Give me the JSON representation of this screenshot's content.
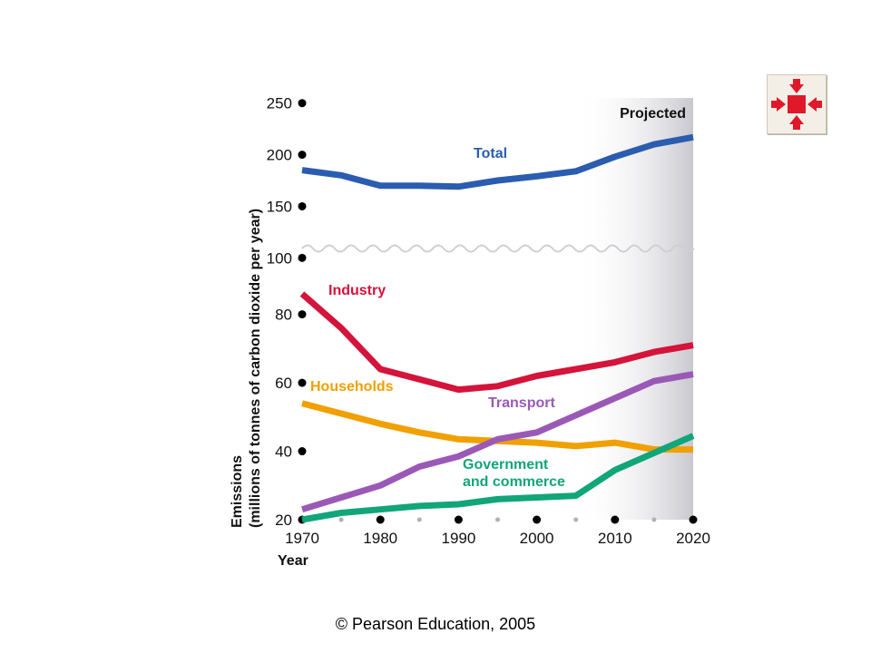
{
  "copyright": "© Pearson Education, 2005",
  "colors": {
    "total": "#2a5db0",
    "industry": "#d4143a",
    "households": "#f0a000",
    "transport": "#9b59b6",
    "government": "#12a57a",
    "projected_shade": "#c9c8ce",
    "nav_icon": "#e0192a"
  },
  "nav_button": {
    "icon": "collapse-arrows-icon"
  },
  "chart_data": {
    "type": "line",
    "xlabel": "Year",
    "ylabel_line1": "Emissions",
    "ylabel_line2": "(millions of tonnes of carbon dioxide per year)",
    "projected_label": "Projected",
    "projected_range": [
      2005,
      2020
    ],
    "axis_break": "between 90 and 95 (wavy break)",
    "x_ticks": [
      1970,
      1980,
      1990,
      2000,
      2010,
      2020
    ],
    "x_tick_labels": [
      "1970",
      "1980",
      "1990",
      "2000",
      "2010",
      "2020"
    ],
    "x_minor_ticks": [
      1975,
      1985,
      1995,
      2005,
      2015
    ],
    "y_ticks_lower": [
      20,
      40,
      60,
      80
    ],
    "y_tick_labels_lower": [
      "20",
      "40",
      "60",
      "80"
    ],
    "y_ticks_upper": [
      100,
      150,
      200,
      250
    ],
    "y_tick_labels_upper": [
      "100",
      "150",
      "200",
      "250"
    ],
    "ylim_lower": [
      20,
      95
    ],
    "ylim_upper": [
      95,
      255
    ],
    "x": [
      1970,
      1975,
      1980,
      1985,
      1990,
      1995,
      2000,
      2005,
      2010,
      2015,
      2020
    ],
    "series": [
      {
        "name": "Total",
        "color_key": "total",
        "values": [
          185,
          180,
          170,
          170,
          169,
          175,
          179,
          184,
          198,
          210,
          217
        ]
      },
      {
        "name": "Industry",
        "color_key": "industry",
        "values": [
          86,
          76,
          64,
          61,
          58,
          59,
          62,
          64,
          66,
          69,
          71
        ]
      },
      {
        "name": "Households",
        "color_key": "households",
        "values": [
          54,
          51,
          48,
          45.5,
          43.5,
          43,
          42.5,
          41.5,
          42.5,
          40.5,
          40.5
        ]
      },
      {
        "name": "Transport",
        "color_key": "transport",
        "values": [
          23,
          26.5,
          30,
          35.5,
          38.5,
          43.5,
          45.5,
          50.5,
          55.5,
          60.5,
          62.5
        ]
      },
      {
        "name": "Government and commerce",
        "label_lines": [
          "Government",
          "and commerce"
        ],
        "color_key": "government",
        "values": [
          20,
          22,
          23,
          24,
          24.5,
          26,
          26.5,
          27,
          34.5,
          39.5,
          44.5
        ]
      }
    ]
  }
}
